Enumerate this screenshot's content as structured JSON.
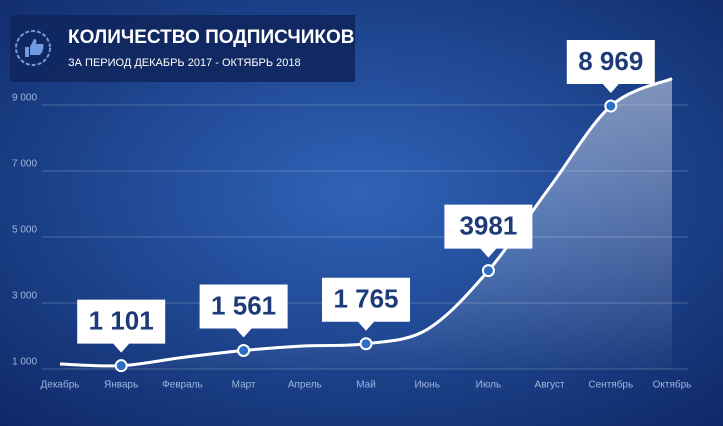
{
  "chart_data": {
    "type": "line",
    "title": "КОЛИЧЕСТВО ПОДПИСЧИКОВ",
    "subtitle": "ЗА ПЕРИОД ДЕКАБРЬ 2017 - ОКТЯБРЬ 2018",
    "categories": [
      "Декабрь",
      "Январь",
      "Февраль",
      "Март",
      "Апрель",
      "Май",
      "Июнь",
      "Июль",
      "Август",
      "Сентябрь",
      "Октябрь"
    ],
    "values": [
      1150,
      1101,
      1350,
      1561,
      1700,
      1765,
      2200,
      3981,
      6500,
      8969,
      9800
    ],
    "value_labels": [
      null,
      "1 101",
      null,
      "1 561",
      null,
      "1 765",
      null,
      "3981",
      null,
      "8 969",
      null
    ],
    "color": "#ffffff",
    "ylim": [
      1000,
      10000
    ],
    "yticks": [
      {
        "value": 1000,
        "label": "1 000"
      },
      {
        "value": 3000,
        "label": "3 000"
      },
      {
        "value": 5000,
        "label": "5 000"
      },
      {
        "value": 7000,
        "label": "7 000"
      },
      {
        "value": 9000,
        "label": "9 000"
      }
    ],
    "grid": true
  }
}
